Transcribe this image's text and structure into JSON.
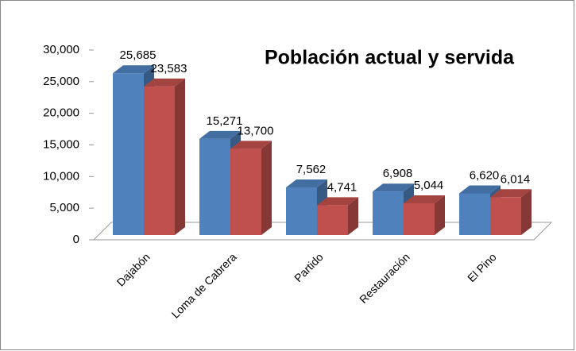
{
  "chart_data": {
    "type": "bar3d",
    "title": "Población actual y servida",
    "categories": [
      "Dajabón",
      "Loma de Cabrera",
      "Partido",
      "Restauración",
      "El Pino"
    ],
    "series": [
      {
        "color": "#4f81bd",
        "values": [
          25685,
          15271,
          7562,
          6908,
          6620
        ],
        "value_labels": [
          "25,685",
          "15,271",
          "7,562",
          "6,908",
          "6,620"
        ]
      },
      {
        "color": "#c0504d",
        "values": [
          23583,
          13700,
          4741,
          5044,
          6014
        ],
        "value_labels": [
          "23,583",
          "13,700",
          "4,741",
          "5,044",
          "6,014"
        ]
      }
    ],
    "ylim": [
      0,
      30000
    ],
    "yticks": [
      0,
      {
        "value": 5000,
        "label": "5,000"
      },
      {
        "value": 10000,
        "label": "10,000"
      },
      {
        "value": 15000,
        "label": "15,000"
      },
      {
        "value": 20000,
        "label": "20,000"
      },
      {
        "value": 25000,
        "label": "25,000"
      },
      {
        "value": 30000,
        "label": "30,000"
      }
    ]
  }
}
